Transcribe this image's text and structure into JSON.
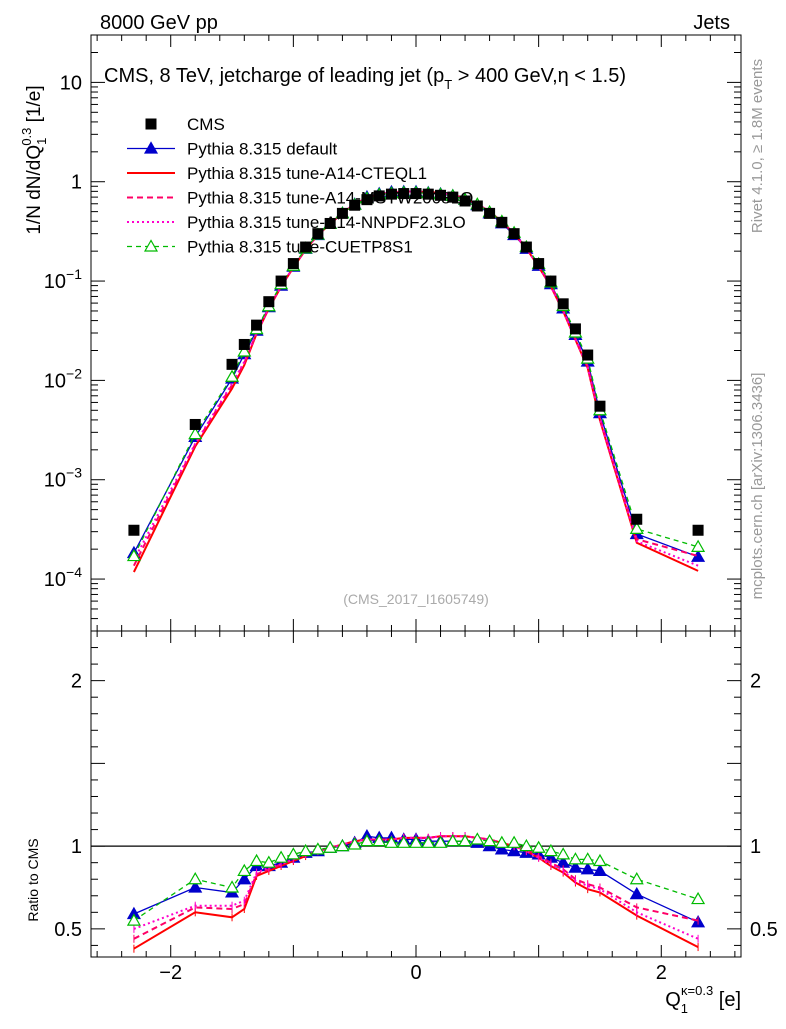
{
  "header": {
    "left": "8000 GeV pp",
    "right": "Jets",
    "side_top": "Rivet 4.1.0, ≥ 1.8M events",
    "side_bottom": "mcplots.cern.ch [arXiv:1306.3436]",
    "analysis_id": "(CMS_2017_I1605749)"
  },
  "chart_data": {
    "type": "line",
    "title_pre": "CMS, 8 TeV, jetcharge of leading jet (p",
    "title_sub": "T",
    "title_post": " > 400 GeV,η < 1.5)",
    "ylabel_main": "1/N dN/dQ",
    "ylabel_main_sub": "1",
    "ylabel_main_sup": "0.3",
    "ylabel_main_unit": " [1/e]",
    "ylabel_ratio": "Ratio to CMS",
    "xlabel": "Q",
    "xlabel_sub": "1",
    "xlabel_sup": "κ=0.3",
    "xlabel_unit": " [e]",
    "xlim": [
      -2.65,
      2.65
    ],
    "ylim_main": [
      3e-05,
      30
    ],
    "ylim_ratio": [
      0.33,
      2.3
    ],
    "xticks": [
      -2,
      0,
      2
    ],
    "xtick_labels": [
      "−2",
      "0",
      "2"
    ],
    "main_ticks": [
      {
        "value": 10,
        "base": "10",
        "exp": ""
      },
      {
        "value": 1,
        "base": "1",
        "exp": ""
      },
      {
        "value": 0.1,
        "base": "10",
        "exp": "−1"
      },
      {
        "value": 0.01,
        "base": "10",
        "exp": "−2"
      },
      {
        "value": 0.001,
        "base": "10",
        "exp": "−3"
      },
      {
        "value": 0.0001,
        "base": "10",
        "exp": "−4"
      }
    ],
    "ratio_ticks": [
      {
        "value": 0.5,
        "label": "0.5"
      },
      {
        "value": 1,
        "label": "1"
      },
      {
        "value": 2,
        "label": "2"
      }
    ],
    "x": [
      -2.3,
      -1.8,
      -1.5,
      -1.4,
      -1.3,
      -1.2,
      -1.1,
      -1.0,
      -0.9,
      -0.8,
      -0.7,
      -0.6,
      -0.5,
      -0.4,
      -0.3,
      -0.2,
      -0.1,
      0.0,
      0.1,
      0.2,
      0.3,
      0.4,
      0.5,
      0.6,
      0.7,
      0.8,
      0.9,
      1.0,
      1.1,
      1.2,
      1.3,
      1.4,
      1.5,
      1.8,
      2.3
    ],
    "data_name": "CMS",
    "data_values": [
      0.00031,
      0.0036,
      0.0145,
      0.023,
      0.036,
      0.062,
      0.1,
      0.15,
      0.22,
      0.3,
      0.38,
      0.48,
      0.58,
      0.66,
      0.72,
      0.75,
      0.76,
      0.76,
      0.75,
      0.73,
      0.7,
      0.64,
      0.57,
      0.48,
      0.39,
      0.3,
      0.22,
      0.15,
      0.1,
      0.059,
      0.033,
      0.018,
      0.0055,
      0.0004,
      0.00031
    ],
    "series": [
      {
        "name": "Pythia 8.315 default",
        "color": "#0000cc",
        "dash": "",
        "marker": "triangle-filled",
        "ratio": [
          0.59,
          0.75,
          0.72,
          0.8,
          0.88,
          0.88,
          0.9,
          0.93,
          0.96,
          0.97,
          0.99,
          1.0,
          1.02,
          1.06,
          1.05,
          1.05,
          1.04,
          1.04,
          1.03,
          1.03,
          1.03,
          1.03,
          1.02,
          1.0,
          0.98,
          0.97,
          0.96,
          0.95,
          0.93,
          0.9,
          0.87,
          0.86,
          0.85,
          0.71,
          0.54
        ]
      },
      {
        "name": "Pythia 8.315 tune-A14-CTEQL1",
        "color": "#ff0000",
        "dash": "",
        "marker": "none",
        "ratio": [
          0.38,
          0.6,
          0.57,
          0.62,
          0.82,
          0.85,
          0.88,
          0.91,
          0.94,
          0.97,
          0.99,
          1.01,
          1.03,
          1.04,
          1.04,
          1.04,
          1.05,
          1.05,
          1.05,
          1.06,
          1.06,
          1.06,
          1.05,
          1.04,
          1.02,
          1.0,
          0.97,
          0.93,
          0.88,
          0.84,
          0.78,
          0.74,
          0.72,
          0.58,
          0.39
        ]
      },
      {
        "name": "Pythia 8.315 tune-A14-MSTW2008LO",
        "color": "#ff0066",
        "dash": "6,4",
        "marker": "none",
        "ratio": [
          0.44,
          0.63,
          0.62,
          0.65,
          0.83,
          0.86,
          0.89,
          0.92,
          0.95,
          0.97,
          0.99,
          1.01,
          1.03,
          1.04,
          1.04,
          1.04,
          1.05,
          1.05,
          1.05,
          1.06,
          1.06,
          1.06,
          1.05,
          1.04,
          1.02,
          1.0,
          0.98,
          0.94,
          0.9,
          0.86,
          0.8,
          0.77,
          0.75,
          0.63,
          0.55
        ]
      },
      {
        "name": "Pythia 8.315 tune-A14-NNPDF2.3LO",
        "color": "#ff00cc",
        "dash": "2,3",
        "marker": "none",
        "ratio": [
          0.5,
          0.64,
          0.64,
          0.67,
          0.84,
          0.87,
          0.89,
          0.92,
          0.95,
          0.97,
          0.99,
          1.01,
          1.03,
          1.04,
          1.04,
          1.04,
          1.05,
          1.05,
          1.05,
          1.06,
          1.06,
          1.06,
          1.05,
          1.04,
          1.02,
          1.0,
          0.97,
          0.93,
          0.89,
          0.85,
          0.79,
          0.76,
          0.74,
          0.6,
          0.44
        ]
      },
      {
        "name": "Pythia 8.315 tune-CUETP8S1",
        "color": "#00bb00",
        "dash": "5,4",
        "marker": "triangle-open",
        "ratio": [
          0.55,
          0.8,
          0.75,
          0.85,
          0.91,
          0.9,
          0.93,
          0.95,
          0.97,
          0.98,
          0.99,
          1.0,
          1.01,
          1.03,
          1.03,
          1.02,
          1.02,
          1.02,
          1.02,
          1.02,
          1.03,
          1.03,
          1.04,
          1.03,
          1.02,
          1.02,
          1.0,
          0.99,
          0.97,
          0.95,
          0.92,
          0.92,
          0.91,
          0.8,
          0.68
        ]
      }
    ]
  }
}
